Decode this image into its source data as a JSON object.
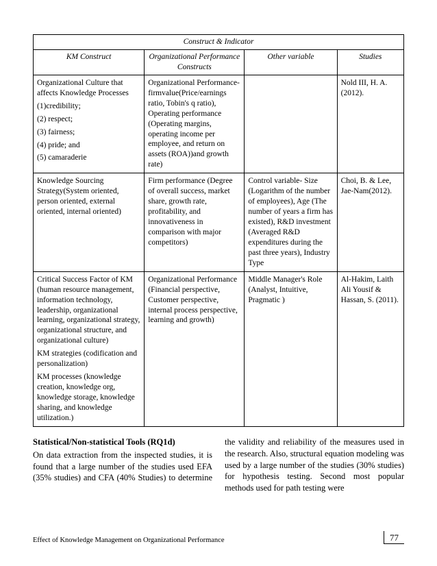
{
  "table": {
    "super_header": "Construct & Indicator",
    "headers": {
      "h1": "KM Construct",
      "h2": "Organizational Performance Constructs",
      "h3": "Other variable",
      "h4": "Studies"
    },
    "rows": [
      {
        "c1": [
          "Organizational Culture that affects Knowledge Processes",
          "(1)credibility;",
          "(2) respect;",
          "(3) fairness;",
          "(4) pride; and",
          "(5) camaraderie"
        ],
        "c2": [
          "Organizational Performance- firmvalue(Price/earnings ratio, Tobin's q ratio), Operating performance (Operating margins, operating income per employee, and return on assets (ROA))and growth rate)"
        ],
        "c3": [
          ""
        ],
        "c4": [
          "Nold III, H. A. (2012)."
        ]
      },
      {
        "c1": [
          "Knowledge Sourcing Strategy(System oriented, person oriented, external oriented, internal oriented)"
        ],
        "c2": [
          "Firm performance (Degree of overall success, market share, growth rate, profitability, and innovativeness in comparison with major competitors)"
        ],
        "c3": [
          "Control variable- Size (Logarithm of the number of employees), Age (The number of years a firm has existed), R&D investment (Averaged R&D expenditures during the past three years), Industry Type"
        ],
        "c4": [
          "Choi, B. & Lee, Jae-Nam(2012)."
        ]
      },
      {
        "c1": [
          "Critical Success Factor of KM (human resource management, information technology, leadership, organizational learning, organizational strategy, organizational structure, and organizational culture)",
          "KM strategies (codification and personalization)",
          "KM processes (knowledge creation, knowledge org, knowledge storage, knowledge sharing, and knowledge utilization.)"
        ],
        "c2": [
          "Organizational Performance (Financial perspective, Customer perspective, internal process perspective, learning and growth)"
        ],
        "c3": [
          "Middle Manager's Role (Analyst, Intuitive, Pragmatic )"
        ],
        "c4": [
          "Al-Hakim, Laith Ali Yousif & Hassan, S. (2011)."
        ]
      }
    ]
  },
  "body": {
    "heading": "Statistical/Non-statistical Tools (RQ1d)",
    "text": "On data extraction from the inspected studies, it is found that a large number of the studies used EFA (35% studies) and CFA (40% Studies) to determine the validity and reliability of the measures used in the research. Also, structural equation modeling was used by a large number of the studies (30% studies) for hypothesis testing. Second most popular methods used for path testing were"
  },
  "footer": {
    "running": "Effect of Knowledge Management on Organizational Performance",
    "page": "77"
  }
}
